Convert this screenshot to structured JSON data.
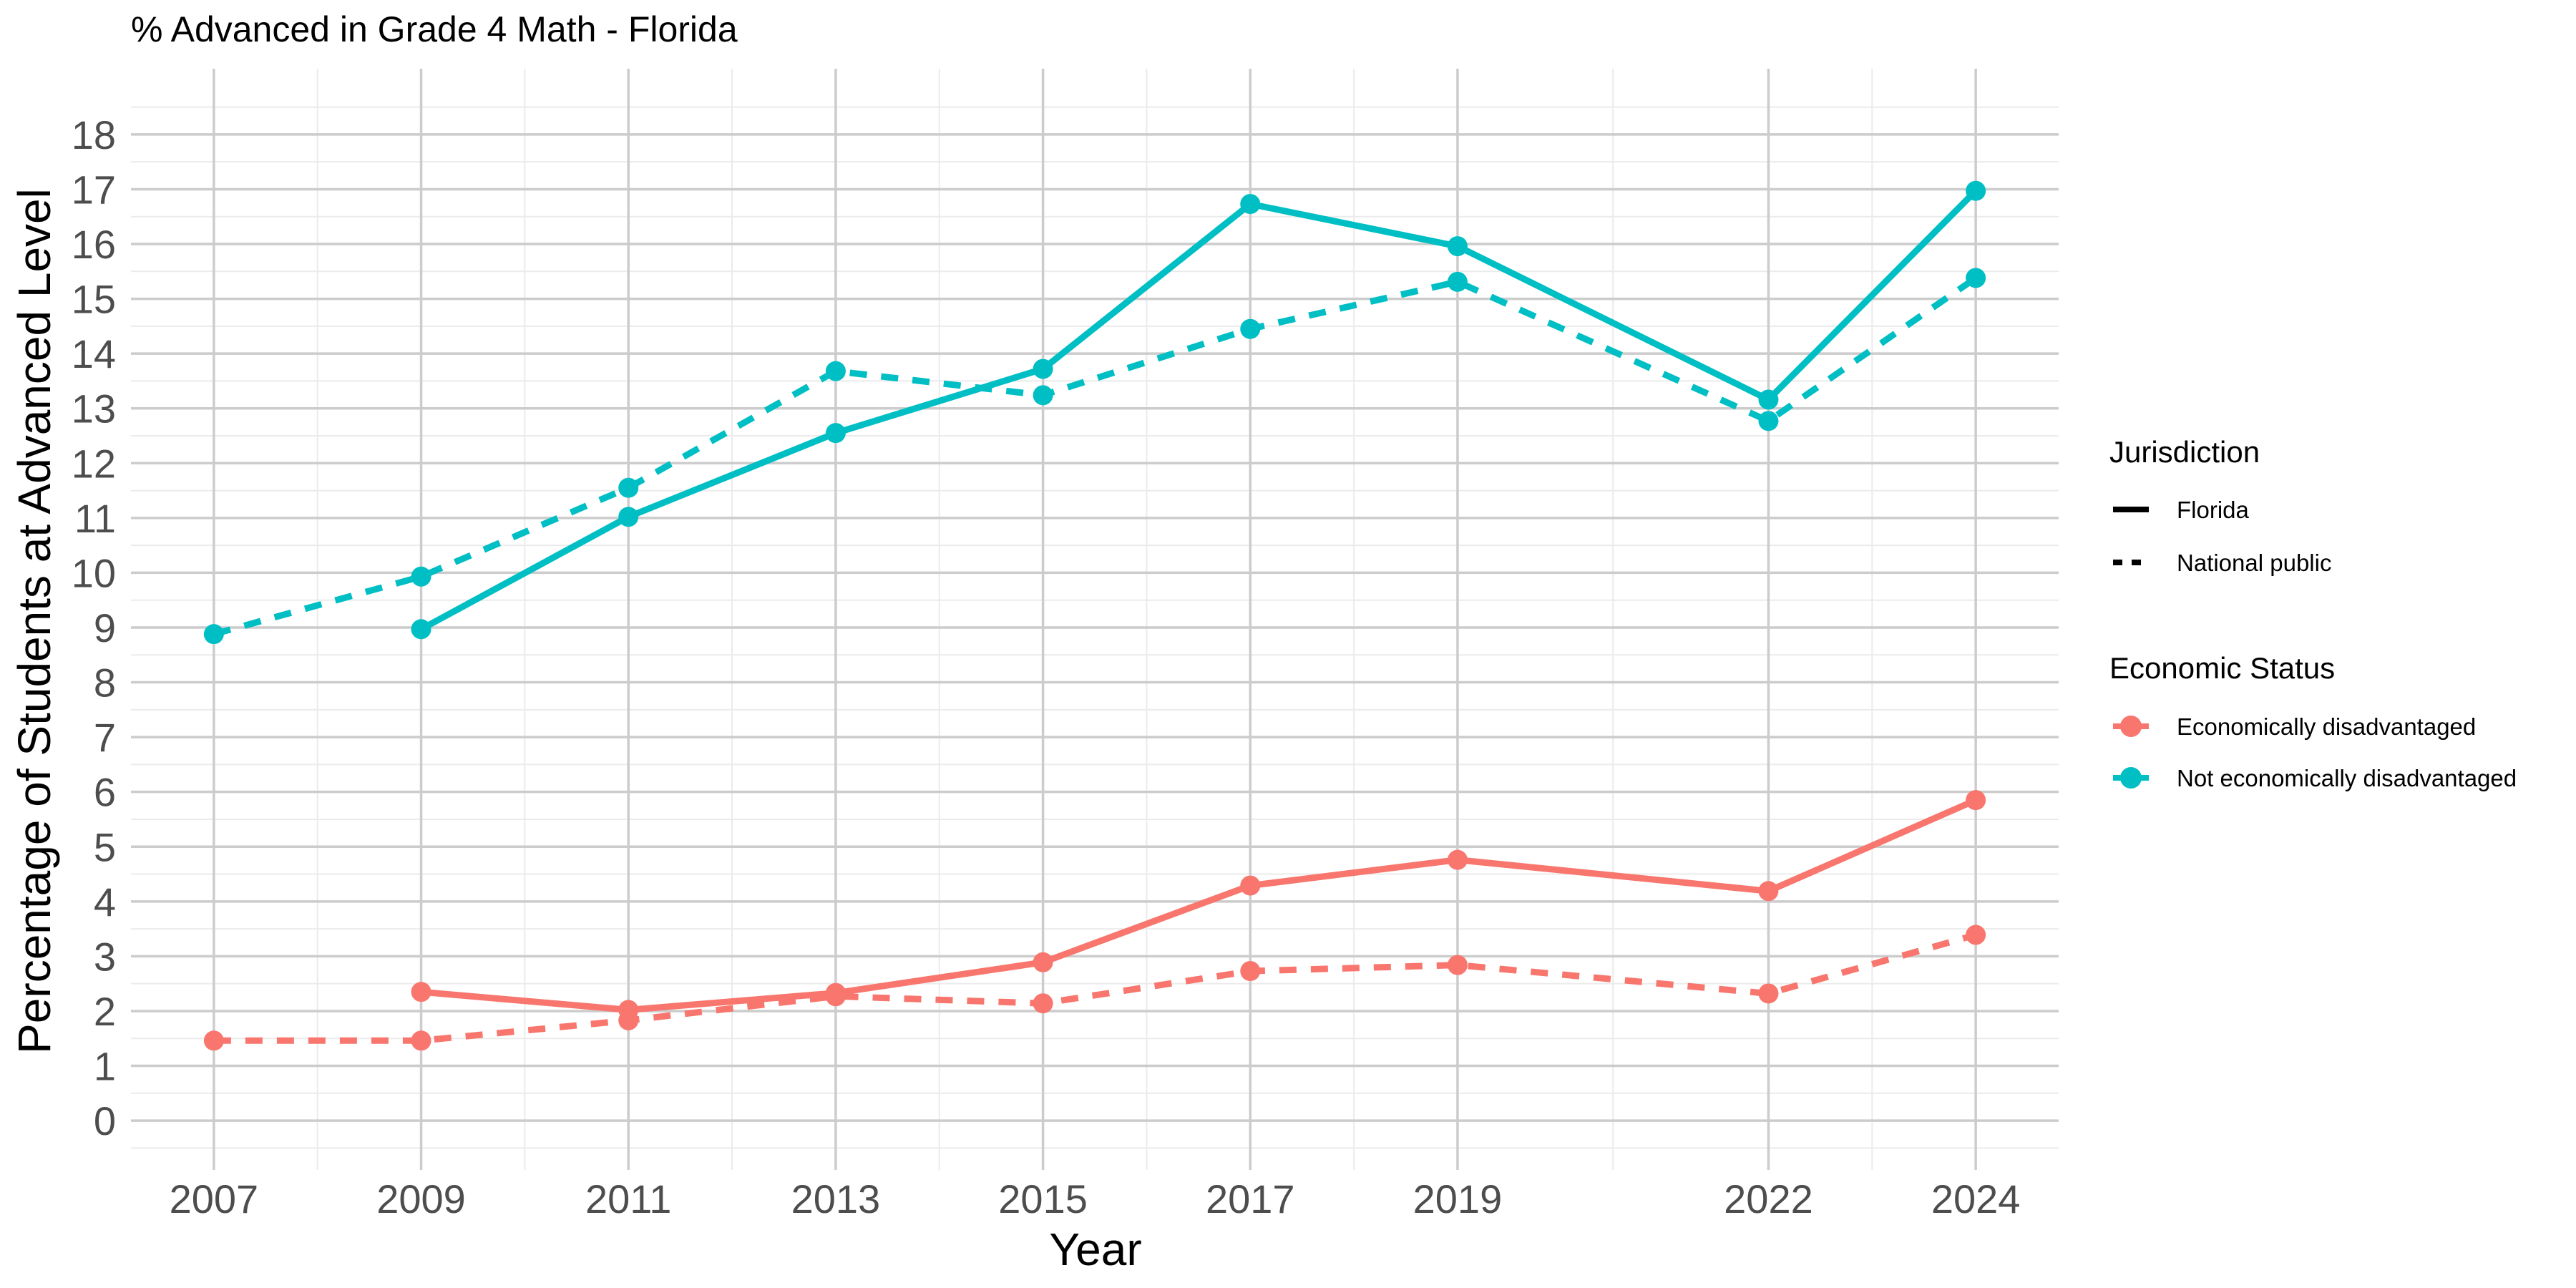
{
  "chart_data": {
    "type": "line",
    "title": "% Advanced in Grade 4 Math - Florida",
    "xlabel": "Year",
    "ylabel": "Percentage of Students at Advanced Level",
    "x_ticks": [
      "2007",
      "2009",
      "2011",
      "2013",
      "2015",
      "2017",
      "2019",
      "2022",
      "2024"
    ],
    "y_ticks": [
      "0",
      "1",
      "2",
      "3",
      "4",
      "5",
      "6",
      "7",
      "8",
      "9",
      "10",
      "11",
      "12",
      "13",
      "14",
      "15",
      "16",
      "17",
      "18"
    ],
    "xlim": [
      2006.2,
      2024.8
    ],
    "ylim": [
      -0.9,
      19.2
    ],
    "grid": true,
    "legend_position": "right",
    "legend": {
      "jurisdiction_title": "Jurisdiction",
      "jurisdiction_items": [
        {
          "label": "Florida",
          "linetype": "solid"
        },
        {
          "label": "National public",
          "linetype": "dashed"
        }
      ],
      "status_title": "Economic Status",
      "status_items": [
        {
          "label": "Economically disadvantaged",
          "color": "#F8766D"
        },
        {
          "label": "Not economically disadvantaged",
          "color": "#00BFC4"
        }
      ]
    },
    "series": [
      {
        "name": "Florida — Economically disadvantaged",
        "color": "#F8766D",
        "linetype": "solid",
        "x": [
          2009,
          2011,
          2013,
          2015,
          2017,
          2019,
          2022,
          2024
        ],
        "y": [
          2.35,
          2.02,
          2.33,
          2.89,
          4.29,
          4.76,
          4.19,
          5.85
        ]
      },
      {
        "name": "National public — Economically disadvantaged",
        "color": "#F8766D",
        "linetype": "dashed",
        "x": [
          2007,
          2009,
          2011,
          2013,
          2015,
          2017,
          2019,
          2022,
          2024
        ],
        "y": [
          1.46,
          1.46,
          1.83,
          2.27,
          2.14,
          2.73,
          2.84,
          2.32,
          3.39
        ]
      },
      {
        "name": "Florida — Not economically disadvantaged",
        "color": "#00BFC4",
        "linetype": "solid",
        "x": [
          2009,
          2011,
          2013,
          2015,
          2017,
          2019,
          2022,
          2024
        ],
        "y": [
          8.97,
          11.02,
          12.55,
          13.72,
          16.73,
          15.96,
          13.16,
          16.97
        ]
      },
      {
        "name": "National public — Not economically disadvantaged",
        "color": "#00BFC4",
        "linetype": "dashed",
        "x": [
          2007,
          2009,
          2011,
          2013,
          2015,
          2017,
          2019,
          2022,
          2024
        ],
        "y": [
          8.88,
          9.93,
          11.55,
          13.68,
          13.24,
          14.45,
          15.31,
          12.77,
          15.38
        ]
      }
    ]
  }
}
